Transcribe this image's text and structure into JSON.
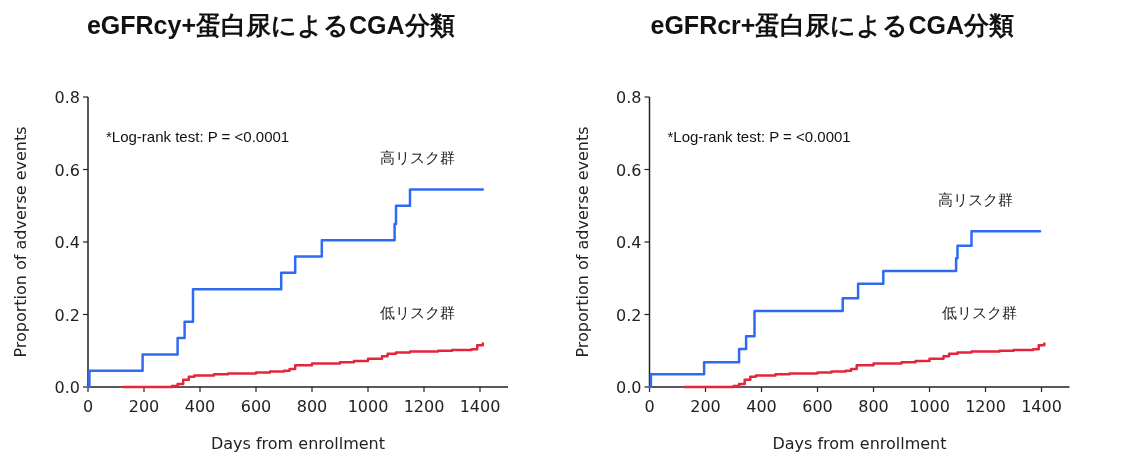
{
  "chart_data": [
    {
      "type": "step",
      "title": "eGFRcy+蛋白尿によるCGA分類",
      "xlabel": "Days from enrollment",
      "ylabel": "Proportion of adverse events",
      "xlim": [
        0,
        1500
      ],
      "xticks": [
        0,
        200,
        400,
        600,
        800,
        1000,
        1200,
        1400
      ],
      "ylim": [
        0,
        0.8
      ],
      "yticks": [
        {
          "value": 0,
          "label": "0.0"
        },
        0.2,
        0.4,
        0.6,
        0.8
      ],
      "grid": false,
      "legend": false,
      "annotations": [
        "*Log-rank test: P = <0.0001"
      ],
      "series": [
        {
          "name": "高リスク群",
          "color": "#2f6bf0",
          "x": [
            0,
            5,
            195,
            320,
            345,
            375,
            690,
            740,
            835,
            1095,
            1100,
            1150,
            1410
          ],
          "values": [
            0,
            0.045,
            0.09,
            0.135,
            0.18,
            0.27,
            0.315,
            0.36,
            0.405,
            0.45,
            0.5,
            0.545,
            0.545
          ]
        },
        {
          "name": "低リスク群",
          "color": "#e5253c",
          "x": [
            125,
            290,
            300,
            320,
            340,
            360,
            380,
            450,
            500,
            600,
            650,
            700,
            720,
            740,
            800,
            900,
            950,
            1000,
            1050,
            1070,
            1100,
            1150,
            1250,
            1300,
            1370,
            1390,
            1410
          ],
          "values": [
            0,
            0,
            0.003,
            0.008,
            0.02,
            0.028,
            0.032,
            0.035,
            0.037,
            0.04,
            0.043,
            0.045,
            0.05,
            0.06,
            0.065,
            0.068,
            0.072,
            0.078,
            0.085,
            0.092,
            0.095,
            0.098,
            0.1,
            0.102,
            0.104,
            0.115,
            0.12
          ]
        }
      ]
    },
    {
      "type": "step",
      "title": "eGFRcr+蛋白尿によるCGA分類",
      "xlabel": "Days from enrollment",
      "ylabel": "Proportion of adverse events",
      "xlim": [
        0,
        1500
      ],
      "xticks": [
        0,
        200,
        400,
        600,
        800,
        1000,
        1200,
        1400
      ],
      "ylim": [
        0,
        0.8
      ],
      "yticks": [
        {
          "value": 0,
          "label": "0.0"
        },
        0.2,
        0.4,
        0.6,
        0.8
      ],
      "grid": false,
      "legend": false,
      "annotations": [
        "*Log-rank test: P = <0.0001"
      ],
      "series": [
        {
          "name": "高リスク群",
          "color": "#2f6bf0",
          "x": [
            0,
            5,
            195,
            320,
            345,
            375,
            690,
            745,
            835,
            1095,
            1100,
            1150,
            1395
          ],
          "values": [
            0,
            0.035,
            0.068,
            0.105,
            0.14,
            0.21,
            0.245,
            0.285,
            0.32,
            0.355,
            0.39,
            0.43,
            0.43
          ]
        },
        {
          "name": "低リスク群",
          "color": "#e5253c",
          "x": [
            125,
            290,
            300,
            320,
            340,
            360,
            380,
            450,
            500,
            600,
            650,
            700,
            720,
            740,
            800,
            900,
            950,
            1000,
            1050,
            1070,
            1100,
            1150,
            1250,
            1300,
            1370,
            1390,
            1410
          ],
          "values": [
            0,
            0,
            0.003,
            0.008,
            0.02,
            0.028,
            0.032,
            0.035,
            0.037,
            0.04,
            0.043,
            0.045,
            0.05,
            0.06,
            0.065,
            0.068,
            0.072,
            0.078,
            0.085,
            0.092,
            0.095,
            0.098,
            0.1,
            0.102,
            0.104,
            0.115,
            0.12
          ]
        }
      ]
    }
  ]
}
